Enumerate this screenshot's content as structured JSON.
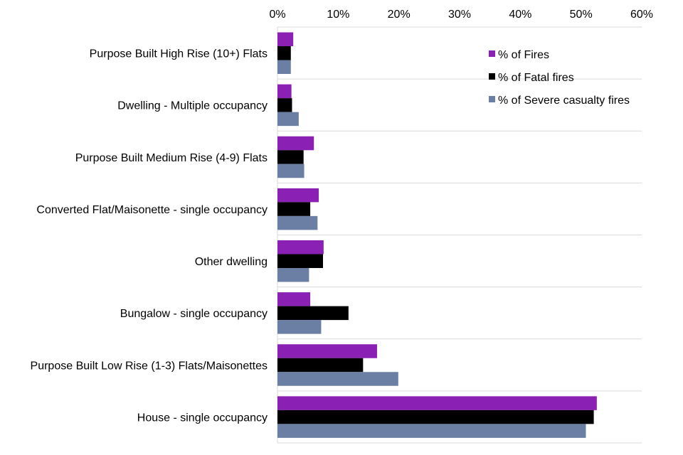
{
  "chart_data": {
    "type": "bar",
    "orientation": "horizontal",
    "title": "",
    "xlabel": "",
    "ylabel": "",
    "xlim": [
      0,
      60
    ],
    "x_ticks": [
      "0%",
      "10%",
      "20%",
      "30%",
      "40%",
      "50%",
      "60%"
    ],
    "x_tick_values": [
      0,
      10,
      20,
      30,
      40,
      50,
      60
    ],
    "grid": "horizontal separators between categories",
    "legend_position": "top-right",
    "categories": [
      "Purpose Built High Rise (10+) Flats",
      "Dwelling - Multiple occupancy",
      "Purpose Built Medium Rise (4-9) Flats",
      "Converted Flat/Maisonette - single occupancy",
      "Other dwelling",
      "Bungalow - single occupancy",
      "Purpose Built Low Rise (1-3) Flats/Maisonettes",
      "House - single occupancy"
    ],
    "series": [
      {
        "name": "% of Fires",
        "color": "#8B20B4",
        "values": [
          2.6,
          2.3,
          6.0,
          6.8,
          7.6,
          5.4,
          16.4,
          52.6
        ]
      },
      {
        "name": "% of Fatal fires",
        "color": "#000000",
        "values": [
          2.2,
          2.4,
          4.3,
          5.4,
          7.5,
          11.7,
          14.1,
          52.1
        ]
      },
      {
        "name": "% of Severe casualty fires",
        "color": "#6A7FA3",
        "values": [
          2.2,
          3.5,
          4.4,
          6.6,
          5.2,
          7.2,
          19.9,
          50.8
        ]
      }
    ]
  }
}
